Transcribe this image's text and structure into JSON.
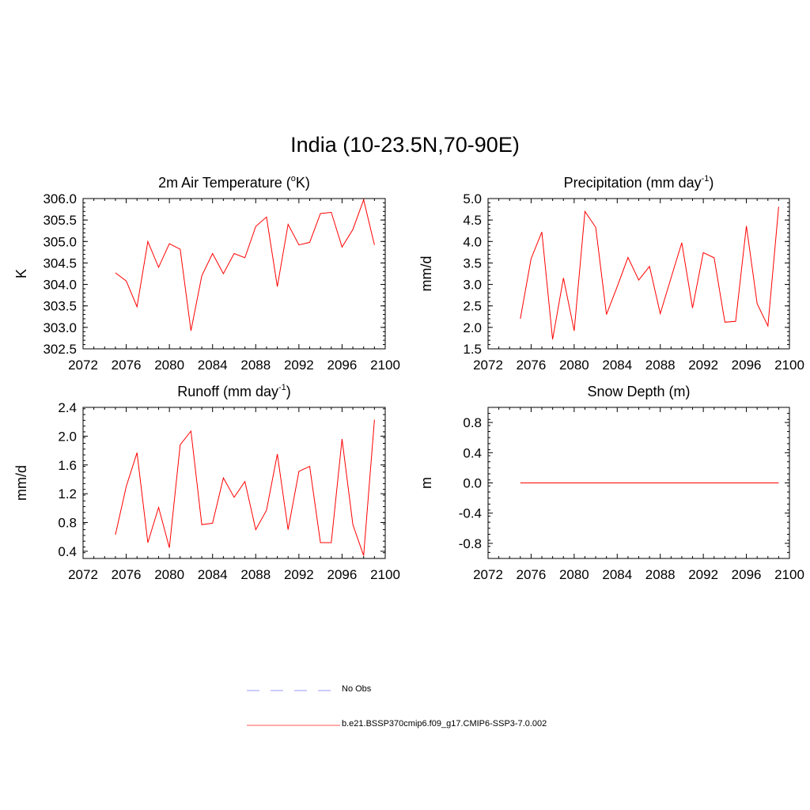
{
  "figure_title": "India (10-23.5N,70-90E)",
  "legend": {
    "items": [
      {
        "label": "No Obs",
        "color": "#9999ff",
        "dash": "dashed"
      },
      {
        "label": "b.e21.BSSP370cmip6.f09_g17.CMIP6-SSP3-7.0.002",
        "color": "#ff5555",
        "dash": "solid"
      }
    ]
  },
  "chart_data": [
    {
      "type": "line",
      "title": "2m Air Temperature (",
      "title_super": "o",
      "title_suffix": "K)",
      "xlabel": "",
      "ylabel": "K",
      "xlim": [
        2072,
        2100
      ],
      "ylim": [
        302.5,
        306.0
      ],
      "xticks": [
        "2072",
        "2076",
        "2080",
        "2084",
        "2088",
        "2092",
        "2096",
        "2100"
      ],
      "yticks": [
        "302.5",
        "303.0",
        "303.5",
        "304.0",
        "304.5",
        "305.0",
        "305.5",
        "306.0"
      ],
      "series": [
        {
          "color": "#ff0000",
          "x": [
            2075,
            2076,
            2077,
            2078,
            2079,
            2080,
            2081,
            2082,
            2083,
            2084,
            2085,
            2086,
            2087,
            2088,
            2089,
            2090,
            2091,
            2092,
            2093,
            2094,
            2095,
            2096,
            2097,
            2098,
            2099
          ],
          "y": [
            304.27,
            304.08,
            303.48,
            305.0,
            304.4,
            304.95,
            304.82,
            302.92,
            304.2,
            304.72,
            304.25,
            304.72,
            304.62,
            305.35,
            305.57,
            303.95,
            305.4,
            304.92,
            304.98,
            305.65,
            305.68,
            304.87,
            305.28,
            305.97,
            304.92
          ]
        }
      ]
    },
    {
      "type": "line",
      "title": "Precipitation (mm day",
      "title_super": "-1",
      "title_suffix": ")",
      "xlabel": "",
      "ylabel": "mm/d",
      "xlim": [
        2072,
        2100
      ],
      "ylim": [
        1.5,
        5.0
      ],
      "xticks": [
        "2072",
        "2076",
        "2080",
        "2084",
        "2088",
        "2092",
        "2096",
        "2100"
      ],
      "yticks": [
        "1.5",
        "2.0",
        "2.5",
        "3.0",
        "3.5",
        "4.0",
        "4.5",
        "5.0"
      ],
      "series": [
        {
          "color": "#ff0000",
          "x": [
            2075,
            2076,
            2077,
            2078,
            2079,
            2080,
            2081,
            2082,
            2083,
            2084,
            2085,
            2086,
            2087,
            2088,
            2089,
            2090,
            2091,
            2092,
            2093,
            2094,
            2095,
            2096,
            2097,
            2098,
            2099
          ],
          "y": [
            2.2,
            3.6,
            4.22,
            1.72,
            3.15,
            1.92,
            4.7,
            4.33,
            2.3,
            2.95,
            3.63,
            3.1,
            3.42,
            2.32,
            3.15,
            3.97,
            2.45,
            3.74,
            3.62,
            2.12,
            2.14,
            4.36,
            2.55,
            2.03,
            4.81
          ]
        }
      ]
    },
    {
      "type": "line",
      "title": "Runoff (mm day",
      "title_super": "-1",
      "title_suffix": ")",
      "xlabel": "",
      "ylabel": "mm/d",
      "xlim": [
        2072,
        2100
      ],
      "ylim": [
        0.3,
        2.4
      ],
      "xticks": [
        "2072",
        "2076",
        "2080",
        "2084",
        "2088",
        "2092",
        "2096",
        "2100"
      ],
      "yticks": [
        "0.4",
        "0.8",
        "1.2",
        "1.6",
        "2.0",
        "2.4"
      ],
      "series": [
        {
          "color": "#ff0000",
          "x": [
            2075,
            2076,
            2077,
            2078,
            2079,
            2080,
            2081,
            2082,
            2083,
            2084,
            2085,
            2086,
            2087,
            2088,
            2089,
            2090,
            2091,
            2092,
            2093,
            2094,
            2095,
            2096,
            2097,
            2098,
            2099
          ],
          "y": [
            0.63,
            1.3,
            1.77,
            0.52,
            1.01,
            0.45,
            1.88,
            2.07,
            0.77,
            0.79,
            1.42,
            1.15,
            1.37,
            0.7,
            0.97,
            1.75,
            0.7,
            1.51,
            1.58,
            0.52,
            0.52,
            1.96,
            0.77,
            0.34,
            2.23
          ]
        }
      ]
    },
    {
      "type": "line",
      "title": "Snow Depth (m)",
      "title_super": "",
      "title_suffix": "",
      "xlabel": "",
      "ylabel": "m",
      "xlim": [
        2072,
        2100
      ],
      "ylim": [
        -1.0,
        1.0
      ],
      "xticks": [
        "2072",
        "2076",
        "2080",
        "2084",
        "2088",
        "2092",
        "2096",
        "2100"
      ],
      "yticks": [
        "-0.8",
        "-0.4",
        "0.0",
        "0.4",
        "0.8"
      ],
      "series": [
        {
          "color": "#ff0000",
          "x": [
            2075,
            2076,
            2077,
            2078,
            2079,
            2080,
            2081,
            2082,
            2083,
            2084,
            2085,
            2086,
            2087,
            2088,
            2089,
            2090,
            2091,
            2092,
            2093,
            2094,
            2095,
            2096,
            2097,
            2098,
            2099
          ],
          "y": [
            0,
            0,
            0,
            0,
            0,
            0,
            0,
            0,
            0,
            0,
            0,
            0,
            0,
            0,
            0,
            0,
            0,
            0,
            0,
            0,
            0,
            0,
            0,
            0,
            0
          ]
        }
      ]
    }
  ]
}
